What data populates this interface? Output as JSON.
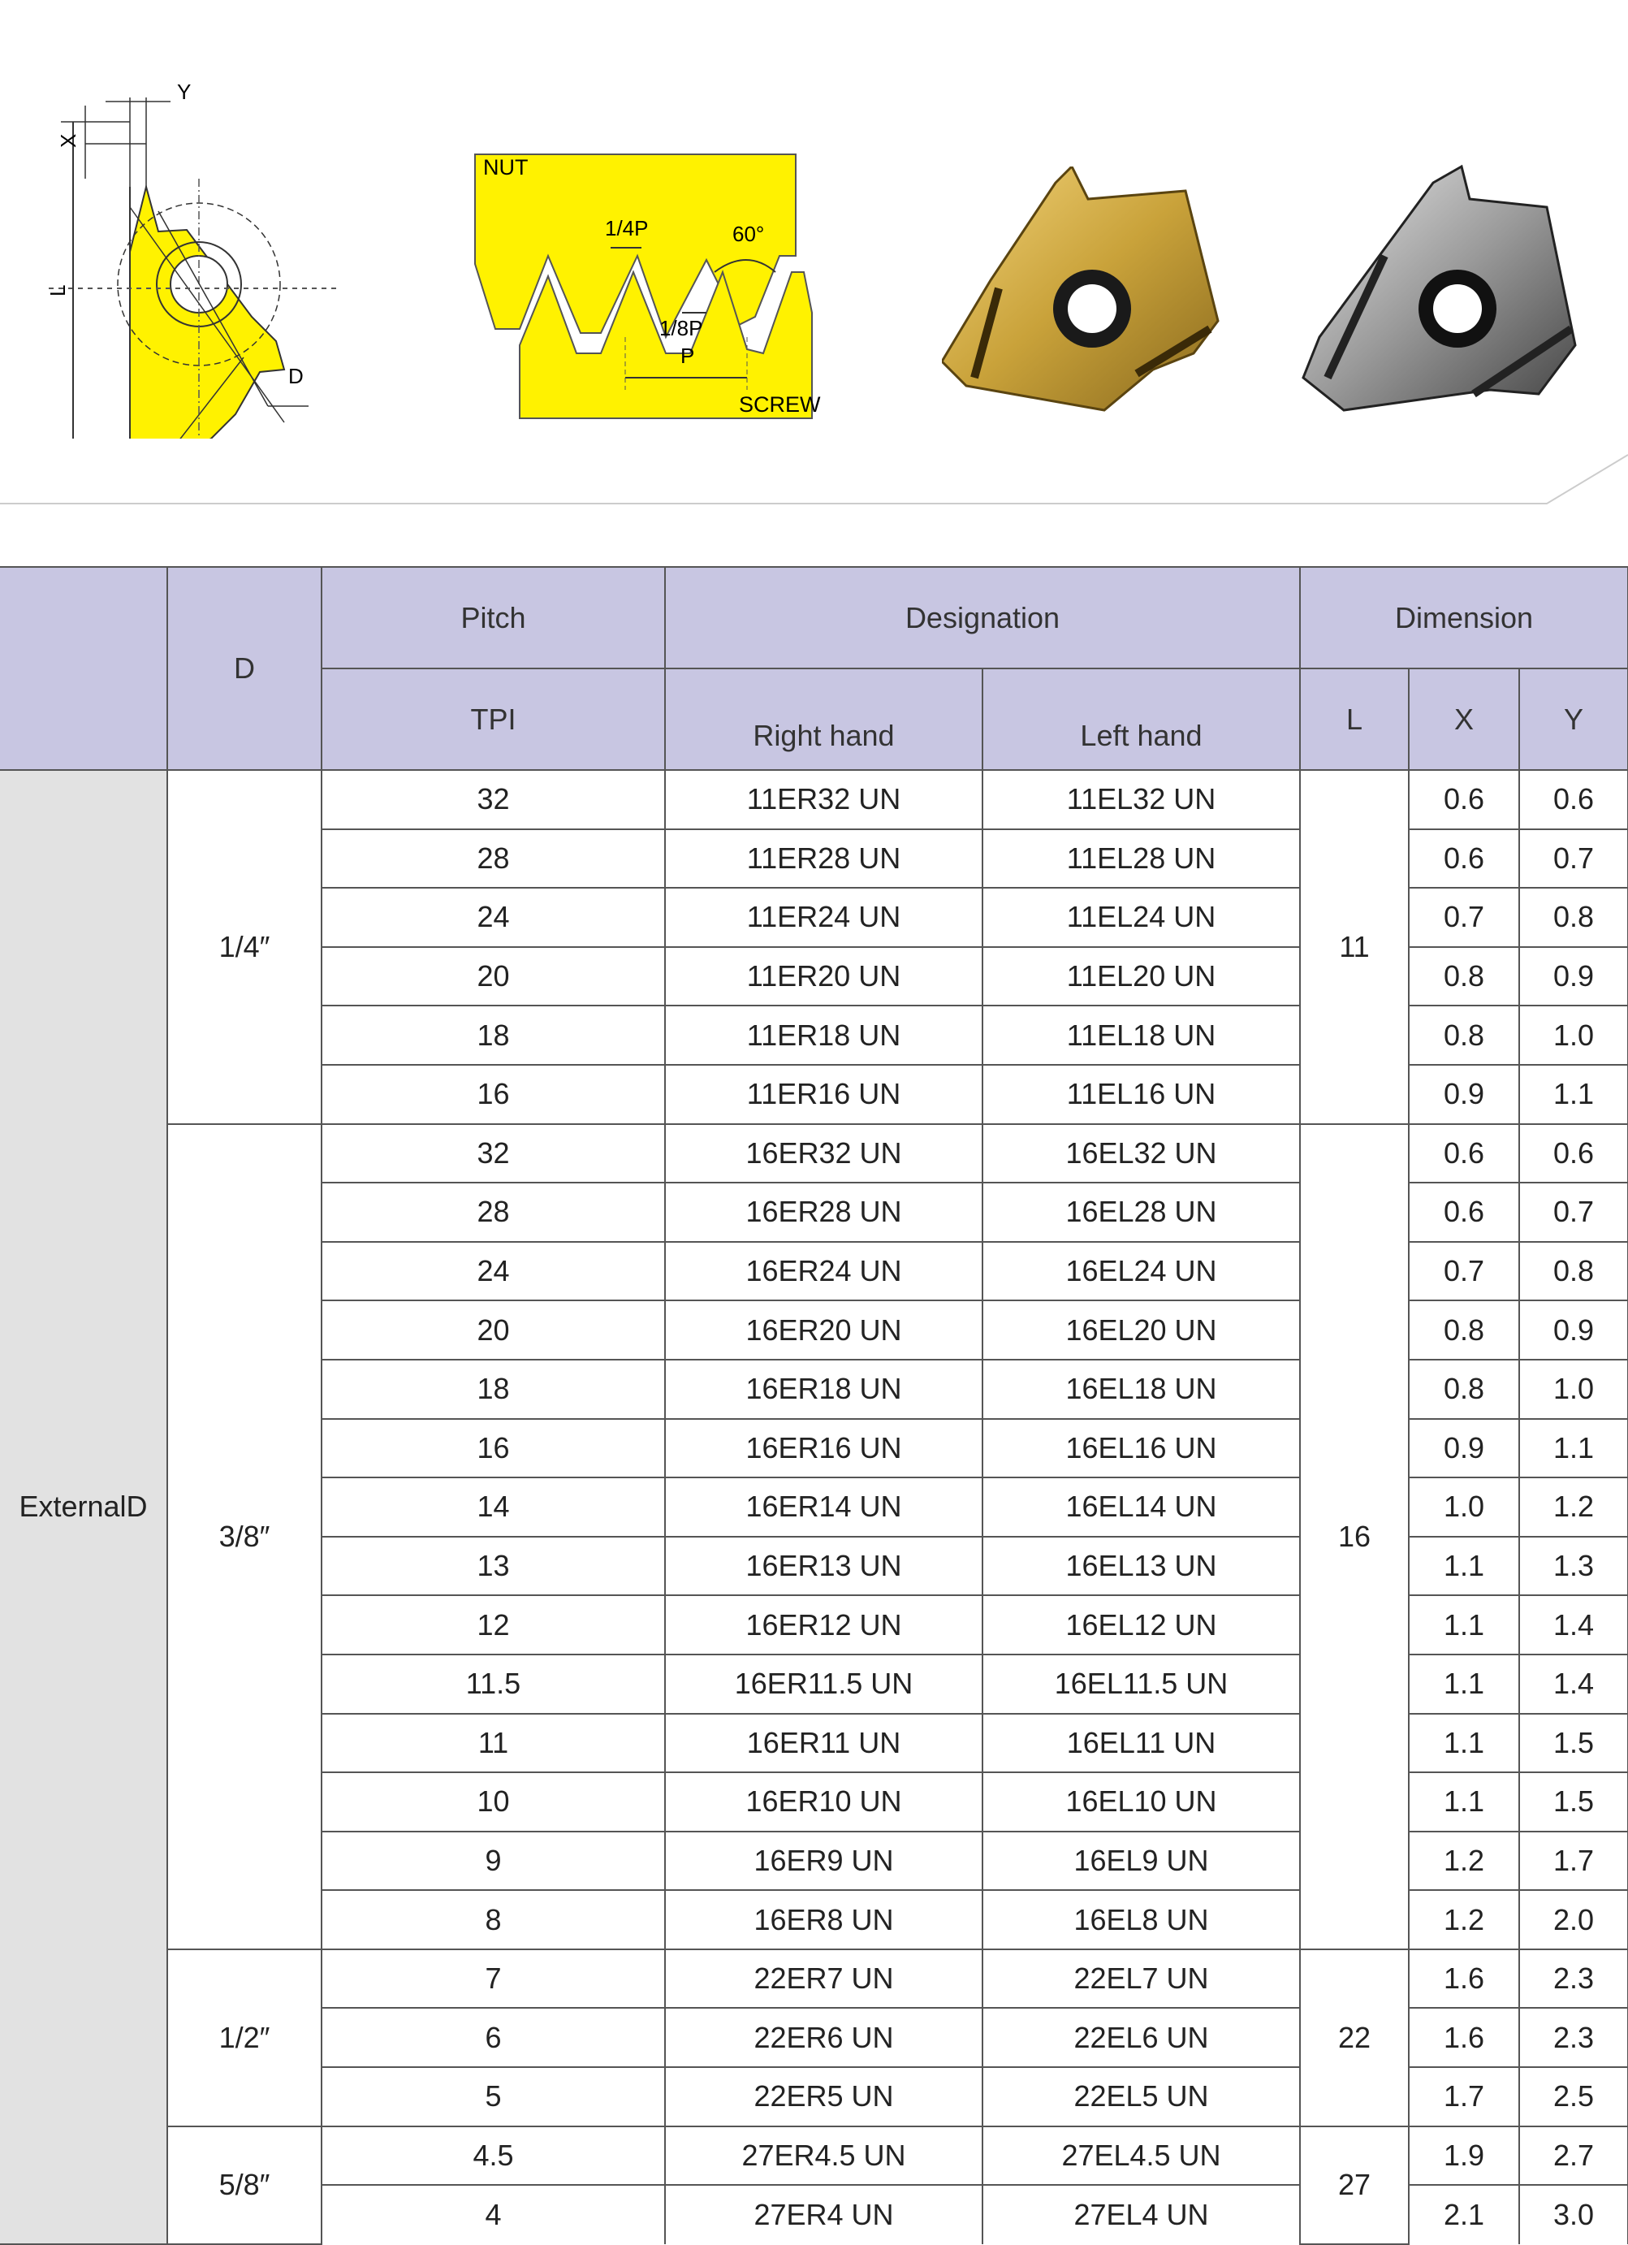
{
  "diagrams": {
    "insert_labels": {
      "x": "X",
      "y": "Y",
      "l": "L",
      "d": "D"
    },
    "thread_labels": {
      "nut": "NUT",
      "screw": "SCREW",
      "quarter_p": "1/4P",
      "eighth_p": "1/8P",
      "p": "P",
      "angle": "60°"
    },
    "colors": {
      "yellow": "#fff200",
      "gold": "#c9a23a",
      "silver": "#9a9a9a"
    }
  },
  "table": {
    "headers": {
      "d": "D",
      "pitch": "Pitch",
      "tpi": "TPI",
      "designation": "Designation",
      "right_hand": "Right hand",
      "left_hand": "Left hand",
      "dimension": "Dimension",
      "l": "L",
      "x": "X",
      "y": "Y"
    },
    "category": "ExternalD",
    "groups": [
      {
        "d": "1/4″",
        "l": "11",
        "rows": [
          [
            "32",
            "11ER32 UN",
            "11EL32 UN",
            "0.6",
            "0.6"
          ],
          [
            "28",
            "11ER28 UN",
            "11EL28 UN",
            "0.6",
            "0.7"
          ],
          [
            "24",
            "11ER24 UN",
            "11EL24 UN",
            "0.7",
            "0.8"
          ],
          [
            "20",
            "11ER20 UN",
            "11EL20 UN",
            "0.8",
            "0.9"
          ],
          [
            "18",
            "11ER18 UN",
            "11EL18 UN",
            "0.8",
            "1.0"
          ],
          [
            "16",
            "11ER16 UN",
            "11EL16 UN",
            "0.9",
            "1.1"
          ]
        ]
      },
      {
        "d": "3/8″",
        "l": "16",
        "rows": [
          [
            "32",
            "16ER32 UN",
            "16EL32 UN",
            "0.6",
            "0.6"
          ],
          [
            "28",
            "16ER28 UN",
            "16EL28 UN",
            "0.6",
            "0.7"
          ],
          [
            "24",
            "16ER24 UN",
            "16EL24 UN",
            "0.7",
            "0.8"
          ],
          [
            "20",
            "16ER20 UN",
            "16EL20 UN",
            "0.8",
            "0.9"
          ],
          [
            "18",
            "16ER18 UN",
            "16EL18 UN",
            "0.8",
            "1.0"
          ],
          [
            "16",
            "16ER16 UN",
            "16EL16 UN",
            "0.9",
            "1.1"
          ],
          [
            "14",
            "16ER14 UN",
            "16EL14 UN",
            "1.0",
            "1.2"
          ],
          [
            "13",
            "16ER13 UN",
            "16EL13 UN",
            "1.1",
            "1.3"
          ],
          [
            "12",
            "16ER12 UN",
            "16EL12 UN",
            "1.1",
            "1.4"
          ],
          [
            "11.5",
            "16ER11.5 UN",
            "16EL11.5 UN",
            "1.1",
            "1.4"
          ],
          [
            "11",
            "16ER11 UN",
            "16EL11 UN",
            "1.1",
            "1.5"
          ],
          [
            "10",
            "16ER10 UN",
            "16EL10 UN",
            "1.1",
            "1.5"
          ],
          [
            "9",
            "16ER9 UN",
            "16EL9 UN",
            "1.2",
            "1.7"
          ],
          [
            "8",
            "16ER8 UN",
            "16EL8 UN",
            "1.2",
            "2.0"
          ]
        ]
      },
      {
        "d": "1/2″",
        "l": "22",
        "rows": [
          [
            "7",
            "22ER7 UN",
            "22EL7 UN",
            "1.6",
            "2.3"
          ],
          [
            "6",
            "22ER6 UN",
            "22EL6 UN",
            "1.6",
            "2.3"
          ],
          [
            "5",
            "22ER5 UN",
            "22EL5 UN",
            "1.7",
            "2.5"
          ]
        ]
      },
      {
        "d": "5/8″",
        "l": "27",
        "rows": [
          [
            "4.5",
            "27ER4.5 UN",
            "27EL4.5 UN",
            "1.9",
            "2.7"
          ],
          [
            "4",
            "27ER4 UN",
            "27EL4 UN",
            "2.1",
            "3.0"
          ]
        ]
      }
    ]
  }
}
